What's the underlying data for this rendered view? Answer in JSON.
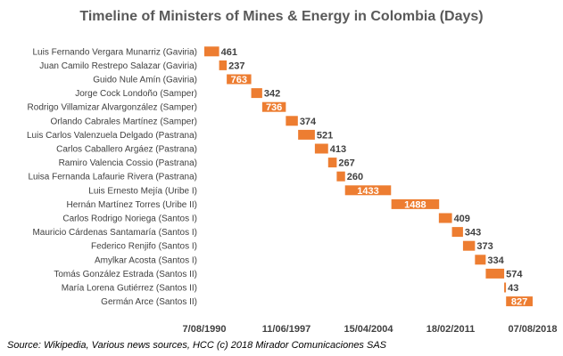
{
  "chart_data": {
    "type": "bar",
    "subtype": "gantt-timeline",
    "title": "Timeline of Ministers of Mines & Energy in Colombia (Days)",
    "source": "Source:  Wikipedia, Various news sources, HCC (c) 2018 Mirador Comunicaciones SAS",
    "x_axis": {
      "tick_labels": [
        "7/08/1990",
        "11/06/1997",
        "15/04/2004",
        "18/02/2011",
        "07/08/2018"
      ],
      "min": "1990-08-07",
      "max": "2018-08-07"
    },
    "bar_color": "#ED7D31",
    "label_inside_color": "#ffffff",
    "label_outside_color": "#404040",
    "grid": false,
    "legend": "none",
    "series": [
      {
        "name": "Luis Fernando Vergara Munarriz (Gaviria)",
        "start": "1990-08-07",
        "days": 461,
        "label_inside": false
      },
      {
        "name": "Juan Camilo Restrepo Salazar (Gaviria)",
        "start": "1991-11-11",
        "days": 237,
        "label_inside": false
      },
      {
        "name": "Guido Nule Amín (Gaviria)",
        "start": "1992-07-05",
        "days": 763,
        "label_inside": true
      },
      {
        "name": "Jorge Cock Londoño (Samper)",
        "start": "1994-08-07",
        "days": 342,
        "label_inside": false
      },
      {
        "name": "Rodrigo Villamizar Alvargonzález (Samper)",
        "start": "1995-07-15",
        "days": 736,
        "label_inside": true
      },
      {
        "name": "Orlando Cabrales Martínez (Samper)",
        "start": "1997-07-20",
        "days": 374,
        "label_inside": false
      },
      {
        "name": "Luis Carlos Valenzuela Delgado (Pastrana)",
        "start": "1998-08-07",
        "days": 521,
        "label_inside": false
      },
      {
        "name": "Carlos Caballero Argáez (Pastrana)",
        "start": "2000-01-10",
        "days": 413,
        "label_inside": false
      },
      {
        "name": "Ramiro Valencia Cossio (Pastrana)",
        "start": "2001-02-27",
        "days": 267,
        "label_inside": false
      },
      {
        "name": "Luisa Fernanda Lafaurie Rivera (Pastrana)",
        "start": "2001-11-21",
        "days": 260,
        "label_inside": false
      },
      {
        "name": "Luis Ernesto Mejía (Uribe I)",
        "start": "2002-08-07",
        "days": 1433,
        "label_inside": true
      },
      {
        "name": "Hernán Martínez Torres (Uribe II)",
        "start": "2006-07-20",
        "days": 1488,
        "label_inside": true
      },
      {
        "name": "Carlos Rodrigo Noriega (Santos I)",
        "start": "2010-08-07",
        "days": 409,
        "label_inside": false
      },
      {
        "name": "Mauricio Cárdenas Santamaría (Santos I)",
        "start": "2011-09-20",
        "days": 343,
        "label_inside": false
      },
      {
        "name": "Federico Renjifo (Santos I)",
        "start": "2012-08-28",
        "days": 373,
        "label_inside": false
      },
      {
        "name": "Amylkar Acosta (Santos I)",
        "start": "2013-09-05",
        "days": 334,
        "label_inside": false
      },
      {
        "name": "Tomás González Estrada (Santos II)",
        "start": "2014-08-07",
        "days": 574,
        "label_inside": false
      },
      {
        "name": "María Lorena Gutiérrez (Santos II)",
        "start": "2016-03-03",
        "days": 43,
        "label_inside": false
      },
      {
        "name": "Germán Arce (Santos II)",
        "start": "2016-05-01",
        "days": 827,
        "label_inside": true
      }
    ]
  }
}
